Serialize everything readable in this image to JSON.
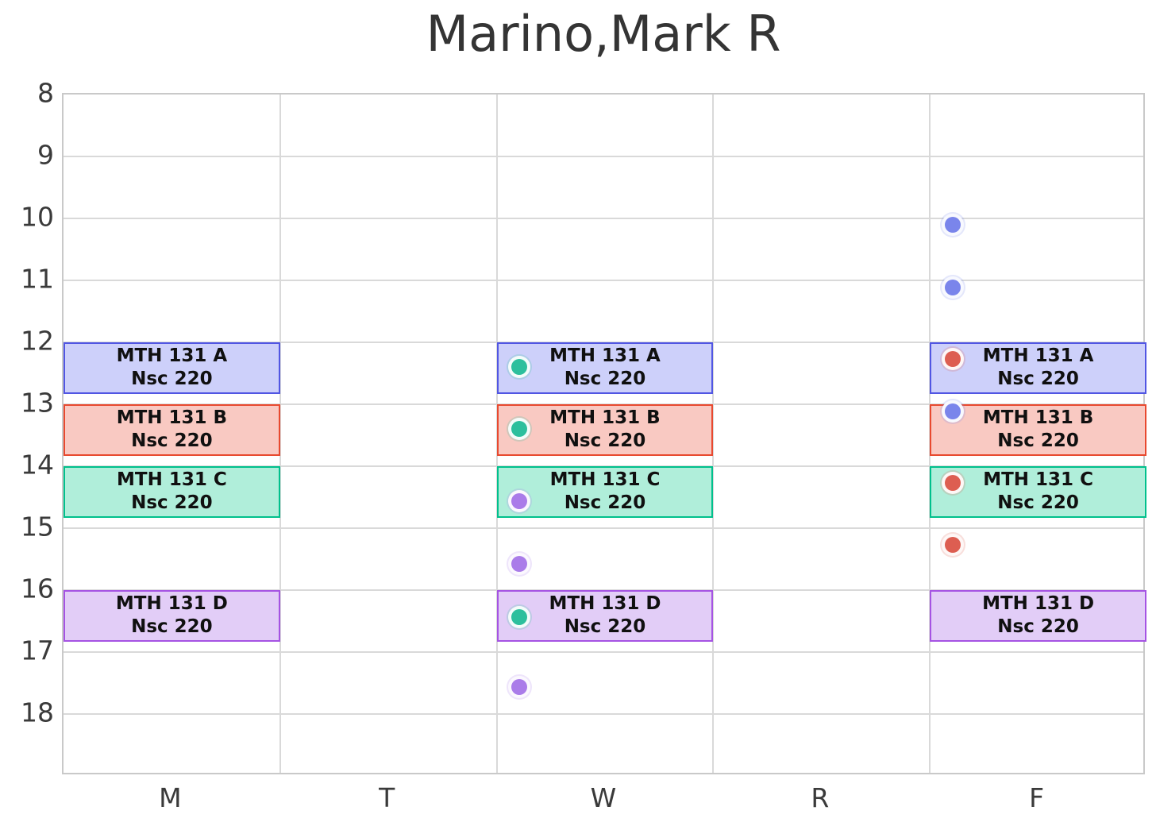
{
  "title": "Marino,Mark R",
  "chart_data": {
    "type": "schedule",
    "title": "Marino,Mark R",
    "x_categories": [
      "M",
      "T",
      "W",
      "R",
      "F"
    ],
    "y_axis": {
      "unit": "hour-of-day",
      "min": 8,
      "max": 19,
      "direction": "down",
      "ticks": [
        8,
        9,
        10,
        11,
        12,
        13,
        14,
        15,
        16,
        17,
        18
      ]
    },
    "grid": true,
    "legend": false,
    "styles": {
      "section_A": {
        "fill": "#cdd0fa",
        "border": "#5156e3"
      },
      "section_B": {
        "fill": "#f9c9c2",
        "border": "#e8492f"
      },
      "section_C": {
        "fill": "#b0eeda",
        "border": "#00c08c"
      },
      "section_D": {
        "fill": "#e2cdf7",
        "border": "#a553e3"
      }
    },
    "dot_colors": {
      "teal": "#2dbf9d",
      "purple": "#aa7ce9",
      "blue": "#7a85eb",
      "red": "#dd5e51"
    },
    "blocks": [
      {
        "label": "MTH 131 A",
        "sublabel": "Nsc 220",
        "day": "M",
        "start": 12.0,
        "end": 12.83,
        "style": "section_A"
      },
      {
        "label": "MTH 131 A",
        "sublabel": "Nsc 220",
        "day": "W",
        "start": 12.0,
        "end": 12.83,
        "style": "section_A"
      },
      {
        "label": "MTH 131 A",
        "sublabel": "Nsc 220",
        "day": "F",
        "start": 12.0,
        "end": 12.83,
        "style": "section_A"
      },
      {
        "label": "MTH 131 B",
        "sublabel": "Nsc 220",
        "day": "M",
        "start": 13.0,
        "end": 13.83,
        "style": "section_B"
      },
      {
        "label": "MTH 131 B",
        "sublabel": "Nsc 220",
        "day": "W",
        "start": 13.0,
        "end": 13.83,
        "style": "section_B"
      },
      {
        "label": "MTH 131 B",
        "sublabel": "Nsc 220",
        "day": "F",
        "start": 13.0,
        "end": 13.83,
        "style": "section_B"
      },
      {
        "label": "MTH 131 C",
        "sublabel": "Nsc 220",
        "day": "M",
        "start": 14.0,
        "end": 14.83,
        "style": "section_C"
      },
      {
        "label": "MTH 131 C",
        "sublabel": "Nsc 220",
        "day": "W",
        "start": 14.0,
        "end": 14.83,
        "style": "section_C"
      },
      {
        "label": "MTH 131 C",
        "sublabel": "Nsc 220",
        "day": "F",
        "start": 14.0,
        "end": 14.83,
        "style": "section_C"
      },
      {
        "label": "MTH 131 D",
        "sublabel": "Nsc 220",
        "day": "M",
        "start": 16.0,
        "end": 16.83,
        "style": "section_D"
      },
      {
        "label": "MTH 131 D",
        "sublabel": "Nsc 220",
        "day": "W",
        "start": 16.0,
        "end": 16.83,
        "style": "section_D"
      },
      {
        "label": "MTH 131 D",
        "sublabel": "Nsc 220",
        "day": "F",
        "start": 16.0,
        "end": 16.83,
        "style": "section_D"
      }
    ],
    "scatter_points": [
      {
        "day": "W",
        "hour": 12.4,
        "color": "teal"
      },
      {
        "day": "W",
        "hour": 13.4,
        "color": "teal"
      },
      {
        "day": "W",
        "hour": 14.57,
        "color": "purple"
      },
      {
        "day": "W",
        "hour": 15.58,
        "color": "purple"
      },
      {
        "day": "W",
        "hour": 16.43,
        "color": "teal"
      },
      {
        "day": "W",
        "hour": 17.57,
        "color": "purple"
      },
      {
        "day": "F",
        "hour": 10.1,
        "color": "blue"
      },
      {
        "day": "F",
        "hour": 11.12,
        "color": "blue"
      },
      {
        "day": "F",
        "hour": 12.27,
        "color": "red"
      },
      {
        "day": "F",
        "hour": 13.12,
        "color": "blue"
      },
      {
        "day": "F",
        "hour": 14.27,
        "color": "red"
      },
      {
        "day": "F",
        "hour": 15.27,
        "color": "red"
      }
    ]
  }
}
